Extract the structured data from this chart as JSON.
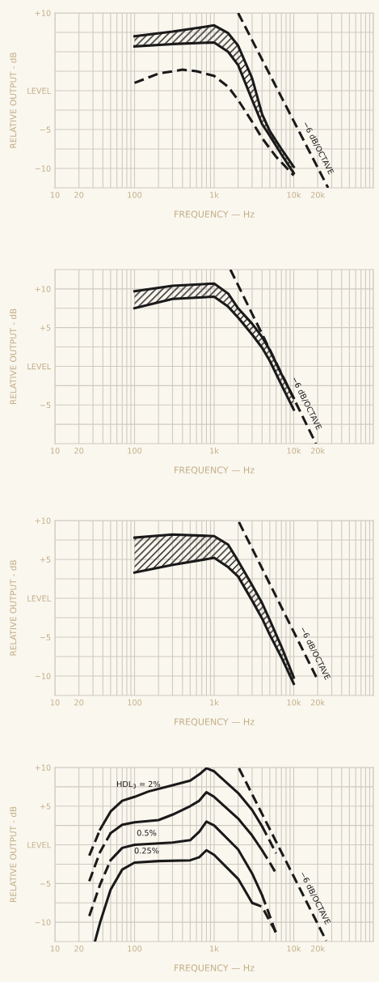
{
  "chart_data": [
    {
      "type": "line",
      "xlabel": "FREQUENCY — Hz",
      "ylabel": "RELATIVE OUTPUT - dB",
      "log": "x",
      "grid": true,
      "xlim": [
        10,
        100000
      ],
      "ylim": [
        -12.5,
        10
      ],
      "xticks": [
        10,
        20,
        100,
        {
          "value": 1000,
          "label": "1k"
        },
        {
          "value": 10000,
          "label": "10k"
        },
        {
          "value": 20000,
          "label": "20k"
        }
      ],
      "yticks": [
        {
          "value": 10,
          "label": "+10"
        },
        {
          "value": 7.5,
          "label": null
        },
        {
          "value": 5,
          "label": null
        },
        {
          "value": 2.5,
          "label": null
        },
        {
          "value": 0,
          "label": "LEVEL"
        },
        {
          "value": -2.5,
          "label": null
        },
        {
          "value": -5,
          "label": "−5"
        },
        {
          "value": -7.5,
          "label": null
        },
        {
          "value": -10,
          "label": "−10"
        }
      ],
      "series": [
        {
          "line_style": "solid",
          "color": "#1a1a1a",
          "x": [
            100,
            300,
            1000,
            1500,
            2000,
            3000,
            4000,
            5000,
            7000,
            10000
          ],
          "values": [
            7.0,
            7.6,
            8.4,
            7.4,
            5.8,
            1.6,
            -3.0,
            -5.2,
            -7.5,
            -9.8
          ]
        },
        {
          "line_style": "solid",
          "color": "#1a1a1a",
          "x": [
            100,
            300,
            1000,
            1500,
            2000,
            3000,
            4000,
            5000,
            7000,
            10000
          ],
          "values": [
            5.7,
            6.0,
            6.2,
            5.0,
            3.3,
            -1.2,
            -4.3,
            -5.8,
            -8.2,
            -10.6
          ]
        },
        {
          "line_style": "dashed",
          "color": "#1a1a1a",
          "x": [
            100,
            200,
            400,
            600,
            1000,
            1500,
            2000,
            3000,
            4000,
            6000,
            10000
          ],
          "values": [
            1.0,
            2.2,
            2.7,
            2.5,
            1.9,
            0.5,
            -1.2,
            -4.0,
            -6.1,
            -8.5,
            -10.9
          ]
        },
        {
          "line_style": "dashed",
          "color": "#1a1a1a",
          "x": [
            2000,
            27000
          ],
          "values": [
            10,
            -12.5
          ]
        }
      ],
      "annotations": [
        {
          "text": "−6 dB/OCTAVE",
          "x": 15000,
          "y": -7.4
        }
      ]
    },
    {
      "type": "line",
      "xlabel": "FREQUENCY — Hz",
      "ylabel": "RELATIVE OUTPUT - dB",
      "log": "x",
      "grid": true,
      "xlim": [
        10,
        100000
      ],
      "ylim": [
        -10,
        12.5
      ],
      "xticks": [
        10,
        20,
        100,
        {
          "value": 1000,
          "label": "1k"
        },
        {
          "value": 10000,
          "label": "10k"
        },
        {
          "value": 20000,
          "label": "20k"
        }
      ],
      "yticks": [
        {
          "value": 10,
          "label": "+10"
        },
        {
          "value": 7.5,
          "label": null
        },
        {
          "value": 5,
          "label": "+5"
        },
        {
          "value": 2.5,
          "label": null
        },
        {
          "value": 0,
          "label": "LEVEL"
        },
        {
          "value": -2.5,
          "label": null
        },
        {
          "value": -5,
          "label": "−5"
        },
        {
          "value": -7.5,
          "label": null
        }
      ],
      "series": [
        {
          "line_style": "solid",
          "color": "#1a1a1a",
          "x": [
            100,
            300,
            1000,
            1500,
            2000,
            3000,
            4000,
            5000,
            7000,
            10000
          ],
          "values": [
            9.7,
            10.4,
            10.7,
            9.4,
            7.5,
            5.5,
            3.8,
            2.1,
            -1.0,
            -4.1
          ]
        },
        {
          "line_style": "solid",
          "color": "#1a1a1a",
          "x": [
            100,
            300,
            1000,
            1500,
            2000,
            3000,
            4000,
            5000,
            7000,
            10000
          ],
          "values": [
            7.5,
            8.7,
            9.0,
            7.7,
            6.3,
            4.1,
            2.4,
            0.7,
            -2.4,
            -5.6
          ]
        },
        {
          "line_style": "dashed",
          "color": "#1a1a1a",
          "x": [
            1600,
            19000
          ],
          "values": [
            12.5,
            -10
          ]
        }
      ],
      "annotations": [
        {
          "text": "−6 dB/OCTAVE",
          "x": 10700,
          "y": -4.8
        }
      ]
    },
    {
      "type": "line",
      "xlabel": "FREQUENCY — Hz",
      "ylabel": "RELATIVE OUTPUT - dB",
      "log": "x",
      "grid": true,
      "xlim": [
        10,
        100000
      ],
      "ylim": [
        -12.5,
        10
      ],
      "xticks": [
        10,
        20,
        100,
        {
          "value": 1000,
          "label": "1k"
        },
        {
          "value": 10000,
          "label": "10k"
        },
        {
          "value": 20000,
          "label": "20k"
        }
      ],
      "yticks": [
        {
          "value": 10,
          "label": "+10"
        },
        {
          "value": 7.5,
          "label": null
        },
        {
          "value": 5,
          "label": "+5"
        },
        {
          "value": 2.5,
          "label": null
        },
        {
          "value": 0,
          "label": "LEVEL"
        },
        {
          "value": -2.5,
          "label": null
        },
        {
          "value": -5,
          "label": "−5"
        },
        {
          "value": -7.5,
          "label": null
        },
        {
          "value": -10,
          "label": "−10"
        }
      ],
      "series": [
        {
          "line_style": "solid",
          "color": "#1a1a1a",
          "x": [
            100,
            300,
            1000,
            1500,
            2000,
            3000,
            4000,
            5000,
            7000,
            10000
          ],
          "values": [
            7.8,
            8.2,
            8.0,
            6.9,
            4.8,
            1.7,
            -0.6,
            -2.8,
            -6.2,
            -10.2
          ]
        },
        {
          "line_style": "solid",
          "color": "#1a1a1a",
          "x": [
            100,
            300,
            1000,
            1500,
            2000,
            3000,
            4000,
            5000,
            7000,
            10000
          ],
          "values": [
            3.3,
            4.3,
            5.2,
            4.0,
            2.8,
            -0.3,
            -2.6,
            -4.7,
            -7.6,
            -11.0
          ]
        },
        {
          "line_style": "dashed",
          "color": "#1a1a1a",
          "x": [
            2050,
            20000
          ],
          "values": [
            9.8,
            -10.5
          ]
        }
      ],
      "annotations": [
        {
          "text": "−6 dB/OCTAVE",
          "x": 13700,
          "y": -7.1
        }
      ]
    },
    {
      "type": "line",
      "xlabel": "FREQUENCY — Hz",
      "ylabel": "RELATIVE OUTPUT - dB",
      "log": "x",
      "grid": true,
      "xlim": [
        10,
        100000
      ],
      "ylim": [
        -12.5,
        10
      ],
      "xticks": [
        10,
        20,
        100,
        {
          "value": 1000,
          "label": "1k"
        },
        {
          "value": 10000,
          "label": "10k"
        },
        {
          "value": 20000,
          "label": "20k"
        }
      ],
      "yticks": [
        {
          "value": 10,
          "label": "+10"
        },
        {
          "value": 7.5,
          "label": null
        },
        {
          "value": 5,
          "label": "+5"
        },
        {
          "value": 2.5,
          "label": null
        },
        {
          "value": 0,
          "label": "LEVEL"
        },
        {
          "value": -2.5,
          "label": null
        },
        {
          "value": -5,
          "label": "−5"
        },
        {
          "value": -7.5,
          "label": null
        },
        {
          "value": -10,
          "label": "−10"
        }
      ],
      "series": [
        {
          "line_style": "dashed",
          "color": "#1a1a1a",
          "x": [
            27,
            37
          ],
          "values": [
            -1.4,
            2.0
          ]
        },
        {
          "line_style": "solid",
          "color": "#1a1a1a",
          "x": [
            37,
            50,
            70,
            100,
            150,
            300,
            500,
            650,
            800,
            1000,
            2000,
            3000,
            4000
          ],
          "values": [
            2.0,
            4.3,
            5.7,
            6.2,
            6.9,
            7.7,
            8.3,
            9.1,
            9.9,
            9.5,
            6.7,
            4.5,
            2.4
          ]
        },
        {
          "line_style": "dashed",
          "color": "#1a1a1a",
          "x": [
            4000,
            5000,
            6000
          ],
          "values": [
            2.4,
            0.5,
            -1.1
          ]
        },
        {
          "line_style": "dashed",
          "color": "#1a1a1a",
          "x": [
            27,
            37,
            50
          ],
          "values": [
            -4.7,
            -0.9,
            1.5
          ]
        },
        {
          "line_style": "solid",
          "color": "#1a1a1a",
          "x": [
            50,
            70,
            100,
            200,
            300,
            500,
            650,
            800,
            1000,
            2000,
            3000,
            4000
          ],
          "values": [
            1.5,
            2.6,
            2.9,
            3.2,
            3.9,
            5.0,
            5.7,
            6.8,
            6.2,
            3.4,
            1.2,
            -0.7
          ]
        },
        {
          "line_style": "dashed",
          "color": "#1a1a1a",
          "x": [
            4000,
            5000,
            6000
          ],
          "values": [
            -0.7,
            -2.3,
            -3.7
          ]
        },
        {
          "line_style": "dashed",
          "color": "#1a1a1a",
          "x": [
            27,
            37,
            50
          ],
          "values": [
            -9.2,
            -5.1,
            -2.0
          ]
        },
        {
          "line_style": "solid",
          "color": "#1a1a1a",
          "x": [
            50,
            70,
            100,
            300,
            500,
            650,
            800,
            1000,
            2000,
            3000,
            4000
          ],
          "values": [
            -2.0,
            -0.4,
            0.0,
            0.3,
            0.6,
            1.7,
            3.0,
            2.5,
            -0.6,
            -3.7,
            -6.5
          ]
        },
        {
          "line_style": "dashed",
          "color": "#1a1a1a",
          "x": [
            4000,
            5000,
            6000
          ],
          "values": [
            -6.5,
            -9.2,
            -11.5
          ]
        },
        {
          "line_style": "solid",
          "color": "#1a1a1a",
          "x": [
            32,
            37,
            50,
            70,
            100,
            200,
            500,
            650,
            800,
            1000,
            2000,
            3000
          ],
          "values": [
            -12.4,
            -10.0,
            -5.8,
            -3.2,
            -2.3,
            -2.1,
            -2.0,
            -1.6,
            -0.7,
            -1.3,
            -4.4,
            -7.5
          ]
        },
        {
          "line_style": "dashed",
          "color": "#1a1a1a",
          "x": [
            3000,
            4000,
            5000,
            6000
          ],
          "values": [
            -7.5,
            -8.0,
            -9.9,
            -11.3
          ]
        },
        {
          "line_style": "dashed",
          "color": "#1a1a1a",
          "x": [
            2050,
            25600
          ],
          "values": [
            9.9,
            -12.4
          ]
        }
      ],
      "annotations": [
        {
          "text": "HDL$_{3}$ = 2%",
          "x": 112,
          "y": 6.4
        },
        {
          "text": "0.5%",
          "x": 142,
          "y": 0.1
        },
        {
          "text": "0.25%",
          "x": 142,
          "y": -2.2
        },
        {
          "text": "−6 dB/OCTAVE",
          "x": 13700,
          "y": -6.9
        }
      ]
    }
  ]
}
